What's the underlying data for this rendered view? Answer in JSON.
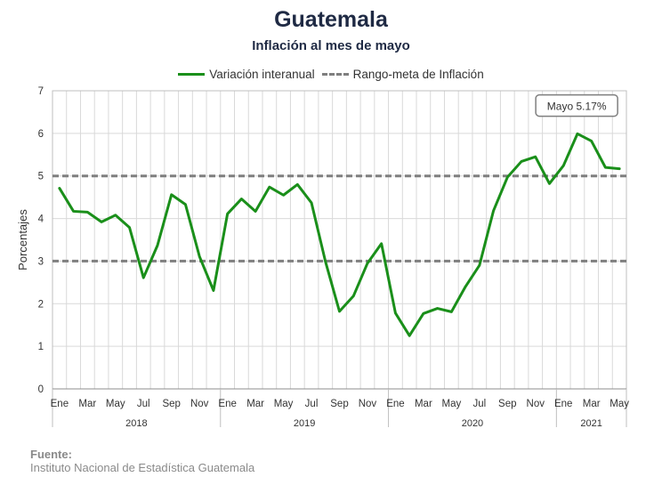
{
  "chart_data": {
    "type": "line",
    "title": "Guatemala",
    "subtitle": "Inflación al mes de mayo",
    "ylabel": "Porcentajes",
    "ylim": [
      0,
      7
    ],
    "yticks": [
      "0",
      "1",
      "2",
      "3",
      "4",
      "5",
      "6",
      "7"
    ],
    "grid": true,
    "legend_position": "top",
    "x_tick_labels": [
      "Ene",
      "",
      "Mar",
      "",
      "May",
      "",
      "Jul",
      "",
      "Sep",
      "",
      "Nov",
      "",
      "Ene",
      "",
      "Mar",
      "",
      "May",
      "",
      "Jul",
      "",
      "Sep",
      "",
      "Nov",
      "",
      "Ene",
      "",
      "Mar",
      "",
      "May",
      "",
      "Jul",
      "",
      "Sep",
      "",
      "Nov",
      "",
      "Ene",
      "",
      "Mar",
      "",
      "May"
    ],
    "years": [
      {
        "label": "2018",
        "start": 0,
        "end": 11
      },
      {
        "label": "2019",
        "start": 12,
        "end": 23
      },
      {
        "label": "2020",
        "start": 24,
        "end": 35
      },
      {
        "label": "2021",
        "start": 36,
        "end": 40
      }
    ],
    "series": [
      {
        "name": "Variación interanual",
        "color": "#1a8f1a",
        "values": [
          4.71,
          4.17,
          4.15,
          3.92,
          4.08,
          3.79,
          2.61,
          3.37,
          4.56,
          4.33,
          3.11,
          2.31,
          4.11,
          4.46,
          4.17,
          4.74,
          4.55,
          4.8,
          4.37,
          2.99,
          1.82,
          2.18,
          2.95,
          3.41,
          1.78,
          1.25,
          1.77,
          1.89,
          1.81,
          2.4,
          2.9,
          4.18,
          4.97,
          5.34,
          5.45,
          4.82,
          5.24,
          5.99,
          5.82,
          5.2,
          5.17
        ]
      },
      {
        "name": "Rango-meta de Inflación",
        "color": "#7f7f7f",
        "bands": [
          3,
          5
        ]
      }
    ],
    "annotation": {
      "text": "Mayo 5.17%",
      "index": 40,
      "value": 5.17
    }
  },
  "source": {
    "label": "Fuente:",
    "text": "Instituto Nacional de Estadística Guatemala"
  }
}
